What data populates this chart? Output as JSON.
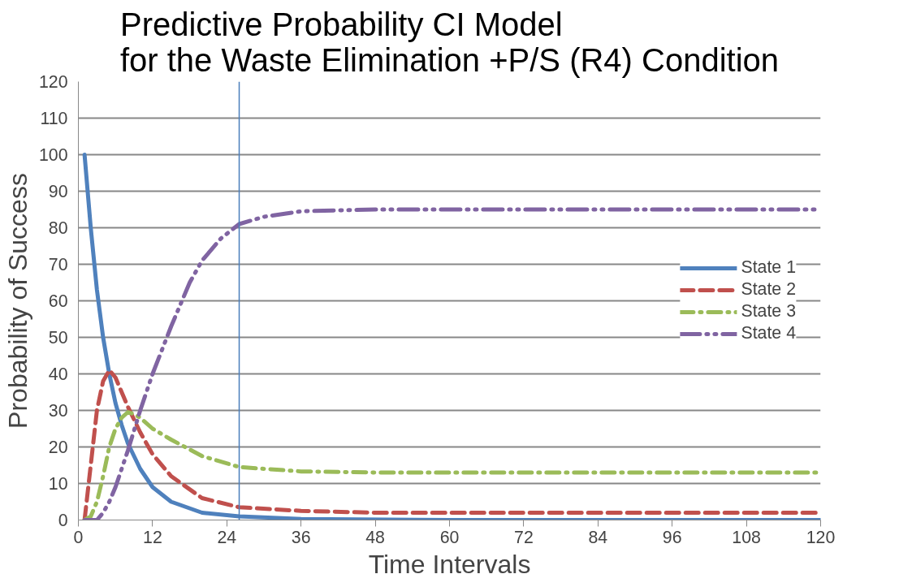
{
  "chart_data": {
    "type": "line",
    "title": "Predictive Probability CI Model\nfor the Waste Elimination +P/S (R4) Condition",
    "xlabel": "Time Intervals",
    "ylabel": "Probability of Success",
    "xlim": [
      0,
      120
    ],
    "ylim": [
      0,
      120
    ],
    "xticks": [
      0,
      12,
      24,
      36,
      48,
      60,
      72,
      84,
      96,
      108,
      120
    ],
    "yticks": [
      0,
      10,
      20,
      30,
      40,
      50,
      60,
      70,
      80,
      90,
      100,
      110,
      120
    ],
    "grid": "y",
    "legend": "right",
    "ref_lines": [
      {
        "axis": "x",
        "value": 26,
        "color": "#4a7ebb"
      }
    ],
    "series": [
      {
        "name": "State 1",
        "color": "#4f81bd",
        "line_style": "solid",
        "x": [
          1,
          2,
          3,
          4,
          5,
          6,
          7,
          8,
          10,
          12,
          15,
          20,
          26,
          36,
          60,
          120
        ],
        "values": [
          100,
          80,
          63,
          50,
          40,
          32,
          26,
          21,
          14,
          9,
          5,
          2,
          1,
          0.3,
          0,
          0
        ]
      },
      {
        "name": "State 2",
        "color": "#c0504d",
        "line_style": "dashed",
        "x": [
          1,
          2,
          3,
          4,
          5,
          6,
          7,
          8,
          10,
          12,
          15,
          20,
          26,
          36,
          48,
          120
        ],
        "values": [
          0,
          15,
          30,
          38,
          41,
          39,
          35,
          31,
          24,
          18,
          12,
          6,
          3.5,
          2.5,
          2,
          2
        ]
      },
      {
        "name": "State 3",
        "color": "#9bbb59",
        "line_style": "dashdot",
        "x": [
          1,
          2,
          3,
          4,
          5,
          6,
          7,
          8,
          9,
          10,
          12,
          15,
          20,
          26,
          36,
          48,
          120
        ],
        "values": [
          0,
          1,
          5,
          12,
          20,
          25,
          28,
          29.5,
          29,
          28,
          25,
          22,
          17.5,
          14.5,
          13.3,
          13,
          13
        ]
      },
      {
        "name": "State 4",
        "color": "#8064a2",
        "line_style": "dashdotdot",
        "x": [
          1,
          3,
          4,
          5,
          6,
          7,
          8,
          10,
          12,
          15,
          18,
          20,
          23,
          26,
          30,
          36,
          48,
          120
        ],
        "values": [
          0,
          0,
          2,
          5,
          9,
          14,
          19,
          30,
          40,
          53,
          65,
          71,
          77,
          81,
          83,
          84.5,
          85,
          85
        ]
      }
    ]
  }
}
